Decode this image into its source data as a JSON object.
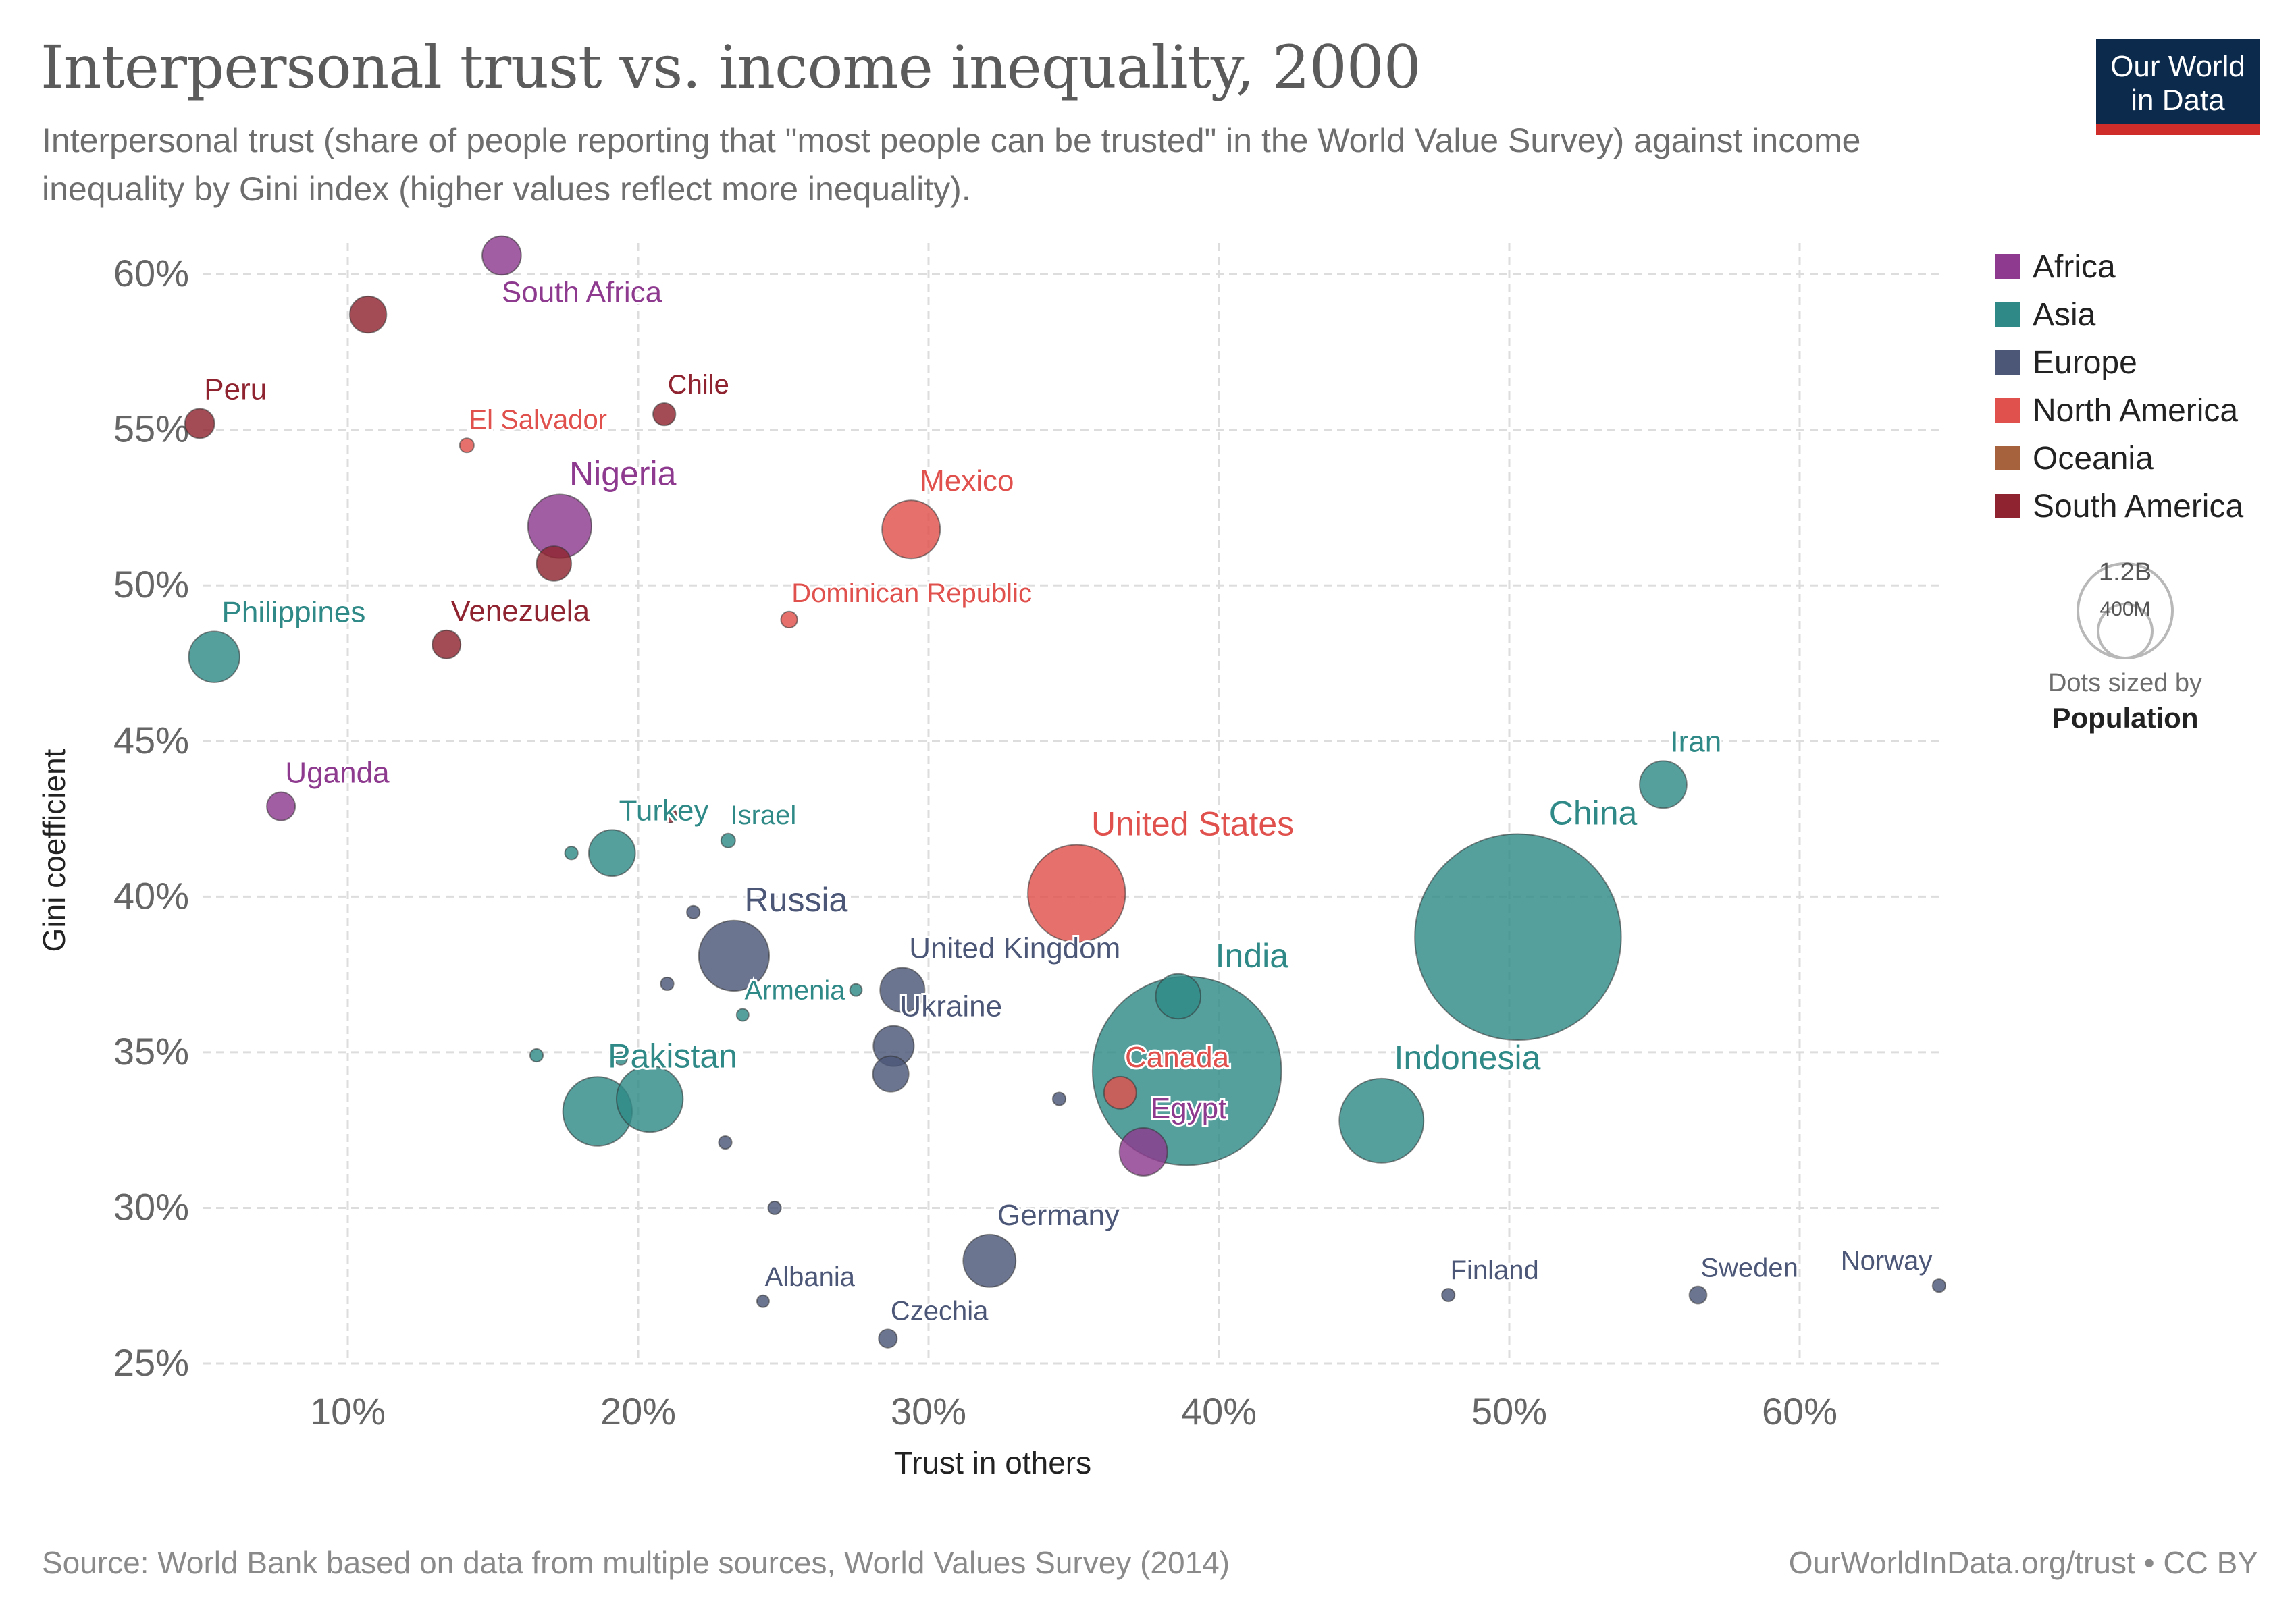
{
  "header": {
    "title": "Interpersonal trust vs. income inequality, 2000",
    "subtitle": "Interpersonal trust (share of people reporting that \"most people can be trusted\" in the World Value Survey) against income inequality by Gini index (higher values reflect more inequality).",
    "logo_line1": "Our World",
    "logo_line2": "in Data"
  },
  "footer": {
    "source": "Source: World Bank based on data from multiple sources, World Values Survey (2014)",
    "link": "OurWorldInData.org/trust • CC BY"
  },
  "size_legend": {
    "big_label": "1.2B",
    "small_label": "400M",
    "caption": "Dots sized by",
    "caption_bold": "Population"
  },
  "chart_data": {
    "type": "scatter",
    "xlabel": "Trust in others",
    "ylabel": "Gini coefficient",
    "xlim": [
      5,
      65
    ],
    "ylim": [
      25,
      61
    ],
    "xticks": [
      10,
      20,
      30,
      40,
      50,
      60
    ],
    "xtick_labels": [
      "10%",
      "20%",
      "30%",
      "40%",
      "50%",
      "60%"
    ],
    "yticks": [
      25,
      30,
      35,
      40,
      45,
      50,
      55,
      60
    ],
    "ytick_labels": [
      "25%",
      "30%",
      "35%",
      "40%",
      "45%",
      "50%",
      "55%",
      "60%"
    ],
    "grid": true,
    "legend_position": "right",
    "regions": [
      {
        "name": "Africa",
        "color": "#8e3b8f"
      },
      {
        "name": "Asia",
        "color": "#2f8a87"
      },
      {
        "name": "Europe",
        "color": "#4c5778"
      },
      {
        "name": "North America",
        "color": "#e0504c"
      },
      {
        "name": "Oceania",
        "color": "#a6613d"
      },
      {
        "name": "South America",
        "color": "#8f2430"
      }
    ],
    "points": [
      {
        "label": "South Africa",
        "region": "Africa",
        "x": 15.3,
        "y": 60.6,
        "pop": 45
      },
      {
        "label": "",
        "region": "South America",
        "x": 10.7,
        "y": 58.7,
        "pop": 40
      },
      {
        "label": "Peru",
        "region": "South America",
        "x": 4.9,
        "y": 55.2,
        "pop": 26
      },
      {
        "label": "El Salvador",
        "region": "North America",
        "x": 14.1,
        "y": 54.5,
        "pop": 6
      },
      {
        "label": "Chile",
        "region": "South America",
        "x": 20.9,
        "y": 55.5,
        "pop": 15
      },
      {
        "label": "Nigeria",
        "region": "Africa",
        "x": 17.3,
        "y": 51.9,
        "pop": 120
      },
      {
        "label": "",
        "region": "South America",
        "x": 17.1,
        "y": 50.7,
        "pop": 36
      },
      {
        "label": "Mexico",
        "region": "North America",
        "x": 29.4,
        "y": 51.8,
        "pop": 100
      },
      {
        "label": "Dominican Republic",
        "region": "North America",
        "x": 25.2,
        "y": 48.9,
        "pop": 8
      },
      {
        "label": "Philippines",
        "region": "Asia",
        "x": 5.4,
        "y": 47.7,
        "pop": 77
      },
      {
        "label": "Venezuela",
        "region": "South America",
        "x": 13.4,
        "y": 48.1,
        "pop": 24
      },
      {
        "label": "Uganda",
        "region": "Africa",
        "x": 7.7,
        "y": 42.9,
        "pop": 24
      },
      {
        "label": "",
        "region": "South America",
        "x": 21.1,
        "y": 42.6,
        "pop": 6
      },
      {
        "label": "Israel",
        "region": "Asia",
        "x": 23.1,
        "y": 41.8,
        "pop": 6
      },
      {
        "label": "",
        "region": "Asia",
        "x": 17.7,
        "y": 41.4,
        "pop": 5
      },
      {
        "label": "Turkey",
        "region": "Asia",
        "x": 19.1,
        "y": 41.4,
        "pop": 64
      },
      {
        "label": "United States",
        "region": "North America",
        "x": 35.1,
        "y": 40.1,
        "pop": 282
      },
      {
        "label": "Iran",
        "region": "Asia",
        "x": 55.3,
        "y": 43.6,
        "pop": 66
      },
      {
        "label": "China",
        "region": "Asia",
        "x": 50.3,
        "y": 38.7,
        "pop": 1262
      },
      {
        "label": "",
        "region": "Europe",
        "x": 21.9,
        "y": 39.5,
        "pop": 5
      },
      {
        "label": "Russia",
        "region": "Europe",
        "x": 23.3,
        "y": 38.1,
        "pop": 147
      },
      {
        "label": "",
        "region": "Europe",
        "x": 21.0,
        "y": 37.2,
        "pop": 5
      },
      {
        "label": "",
        "region": "Asia",
        "x": 27.5,
        "y": 37.0,
        "pop": 4
      },
      {
        "label": "United Kingdom",
        "region": "Europe",
        "x": 29.1,
        "y": 37.0,
        "pop": 59
      },
      {
        "label": "Armenia",
        "region": "Asia",
        "x": 23.6,
        "y": 36.2,
        "pop": 3
      },
      {
        "label": "",
        "region": "Asia",
        "x": 38.6,
        "y": 36.8,
        "pop": 60
      },
      {
        "label": "India",
        "region": "Asia",
        "x": 38.9,
        "y": 34.4,
        "pop": 1057
      },
      {
        "label": "Ukraine",
        "region": "Europe",
        "x": 28.8,
        "y": 35.2,
        "pop": 49
      },
      {
        "label": "",
        "region": "Asia",
        "x": 16.5,
        "y": 34.9,
        "pop": 5
      },
      {
        "label": "",
        "region": "Asia",
        "x": 19.4,
        "y": 34.8,
        "pop": 5
      },
      {
        "label": "",
        "region": "Europe",
        "x": 28.7,
        "y": 34.3,
        "pop": 38
      },
      {
        "label": "",
        "region": "Europe",
        "x": 34.5,
        "y": 33.5,
        "pop": 5
      },
      {
        "label": "Canada",
        "region": "North America",
        "x": 36.6,
        "y": 33.7,
        "pop": 31
      },
      {
        "label": "Pakistan",
        "region": "Asia",
        "x": 18.6,
        "y": 33.1,
        "pop": 142
      },
      {
        "label": "",
        "region": "Asia",
        "x": 20.4,
        "y": 33.5,
        "pop": 131
      },
      {
        "label": "Indonesia",
        "region": "Asia",
        "x": 45.6,
        "y": 32.8,
        "pop": 211
      },
      {
        "label": "Egypt",
        "region": "Africa",
        "x": 37.4,
        "y": 31.8,
        "pop": 68
      },
      {
        "label": "",
        "region": "Europe",
        "x": 23.0,
        "y": 32.1,
        "pop": 5
      },
      {
        "label": "",
        "region": "Europe",
        "x": 24.7,
        "y": 30.0,
        "pop": 5
      },
      {
        "label": "Germany",
        "region": "Europe",
        "x": 32.1,
        "y": 28.3,
        "pop": 82
      },
      {
        "label": "Albania",
        "region": "Europe",
        "x": 24.3,
        "y": 27.0,
        "pop": 3
      },
      {
        "label": "Czechia",
        "region": "Europe",
        "x": 28.6,
        "y": 25.8,
        "pop": 10
      },
      {
        "label": "Finland",
        "region": "Europe",
        "x": 47.9,
        "y": 27.2,
        "pop": 5
      },
      {
        "label": "Sweden",
        "region": "Europe",
        "x": 56.5,
        "y": 27.2,
        "pop": 9
      },
      {
        "label": "Norway",
        "region": "Europe",
        "x": 64.8,
        "y": 27.5,
        "pop": 5
      }
    ]
  }
}
